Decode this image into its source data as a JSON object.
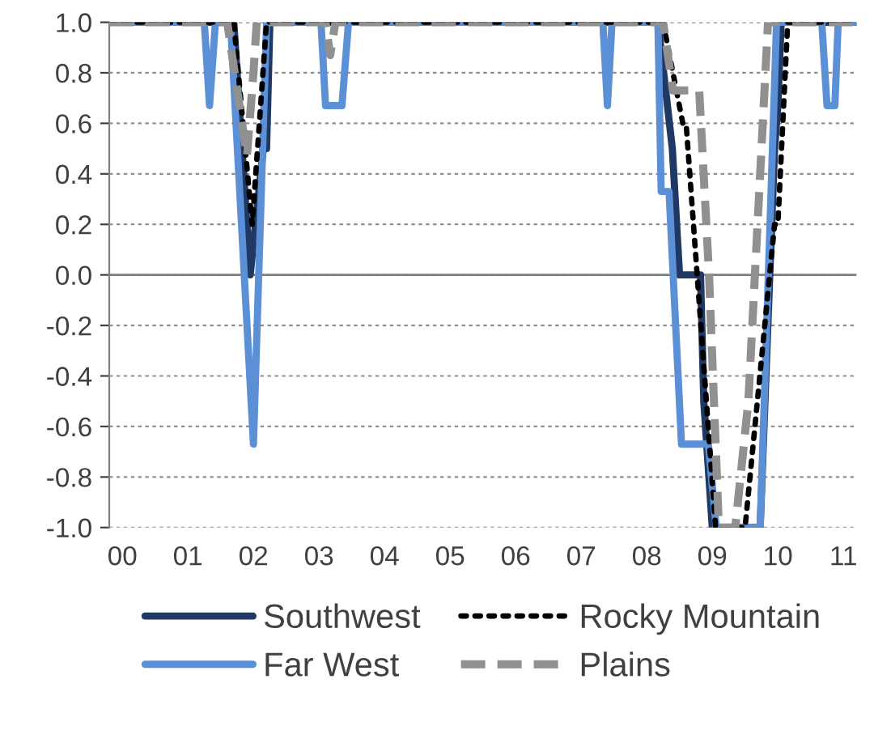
{
  "chart_data": {
    "type": "line",
    "xlim": [
      -0.2,
      11.2
    ],
    "xticks": [
      {
        "value": 0,
        "label": "00"
      },
      {
        "value": 1,
        "label": "01"
      },
      {
        "value": 2,
        "label": "02"
      },
      {
        "value": 3,
        "label": "03"
      },
      {
        "value": 4,
        "label": "04"
      },
      {
        "value": 5,
        "label": "05"
      },
      {
        "value": 6,
        "label": "06"
      },
      {
        "value": 7,
        "label": "07"
      },
      {
        "value": 8,
        "label": "08"
      },
      {
        "value": 9,
        "label": "09"
      },
      {
        "value": 10,
        "label": "10"
      },
      {
        "value": 11,
        "label": "11"
      }
    ],
    "ylim": [
      -1.0,
      1.0
    ],
    "yticks": [
      {
        "value": -1.0,
        "label": "-1.0"
      },
      {
        "value": -0.8,
        "label": "-0.8"
      },
      {
        "value": -0.6,
        "label": "-0.6"
      },
      {
        "value": -0.4,
        "label": "-0.4"
      },
      {
        "value": -0.2,
        "label": "-0.2"
      },
      {
        "value": 0.0,
        "label": "0.0"
      },
      {
        "value": 0.2,
        "label": "0.2"
      },
      {
        "value": 0.4,
        "label": "0.4"
      },
      {
        "value": 0.6,
        "label": "0.6"
      },
      {
        "value": 0.8,
        "label": "0.8"
      },
      {
        "value": 1.0,
        "label": "1.0"
      }
    ],
    "grid": "y",
    "legend": "bottom",
    "ref_lines": [
      {
        "axis": "y",
        "value": 0.0,
        "color": "#808080",
        "line_style": "solid"
      }
    ],
    "series": [
      {
        "name": "Southwest",
        "color": "#1f3864",
        "line_style": "solid",
        "x": [
          -0.2,
          1.7,
          1.95,
          2.15,
          2.2,
          2.25,
          8.17,
          8.39,
          8.5,
          8.82,
          8.87,
          9.0,
          9.73,
          9.95,
          10.0,
          10.05,
          11.2
        ],
        "values": [
          1,
          1,
          0,
          0.5,
          0.5,
          1,
          1,
          0.5,
          0,
          0,
          -0.5,
          -1,
          -1,
          0.5,
          0.67,
          1,
          1
        ]
      },
      {
        "name": "Far West",
        "color": "#5b8fd6",
        "line_style": "solid",
        "x": [
          -0.2,
          1.25,
          1.33,
          1.42,
          1.65,
          2.0,
          2.2,
          3.03,
          3.1,
          3.35,
          3.45,
          7.33,
          7.4,
          7.47,
          8.17,
          8.22,
          8.34,
          8.53,
          8.94,
          9.06,
          9.73,
          9.98,
          10.67,
          10.75,
          10.87,
          10.92,
          11.2
        ],
        "values": [
          1,
          1,
          0.67,
          1,
          1,
          -0.67,
          1,
          1,
          0.67,
          0.67,
          1,
          1,
          0.67,
          1,
          1,
          0.33,
          0.33,
          -0.67,
          -0.67,
          -1,
          -1,
          1,
          1,
          0.67,
          0.67,
          1,
          1
        ]
      },
      {
        "name": "Rocky Mountain",
        "color": "#000000",
        "line_style": "dotted",
        "x": [
          -0.2,
          1.7,
          1.98,
          2.2,
          8.25,
          8.55,
          8.6,
          9.05,
          9.5,
          9.95,
          10.0,
          10.15,
          11.2
        ],
        "values": [
          1,
          1,
          0.2,
          1,
          1,
          0.6,
          0.6,
          -1,
          -1,
          0.2,
          0.2,
          1,
          1
        ]
      },
      {
        "name": "Plains",
        "color": "#909090",
        "line_style": "dashed",
        "x": [
          -0.2,
          1.6,
          1.9,
          2.0,
          2.05,
          3.1,
          3.17,
          3.25,
          8.25,
          8.4,
          8.8,
          8.95,
          9.1,
          9.35,
          9.55,
          9.85,
          11.2
        ],
        "values": [
          1,
          1,
          0.47,
          0.8,
          1,
          1,
          0.87,
          1,
          1,
          0.73,
          0.73,
          0,
          -1,
          -1,
          -0.5,
          1,
          1
        ]
      }
    ]
  }
}
